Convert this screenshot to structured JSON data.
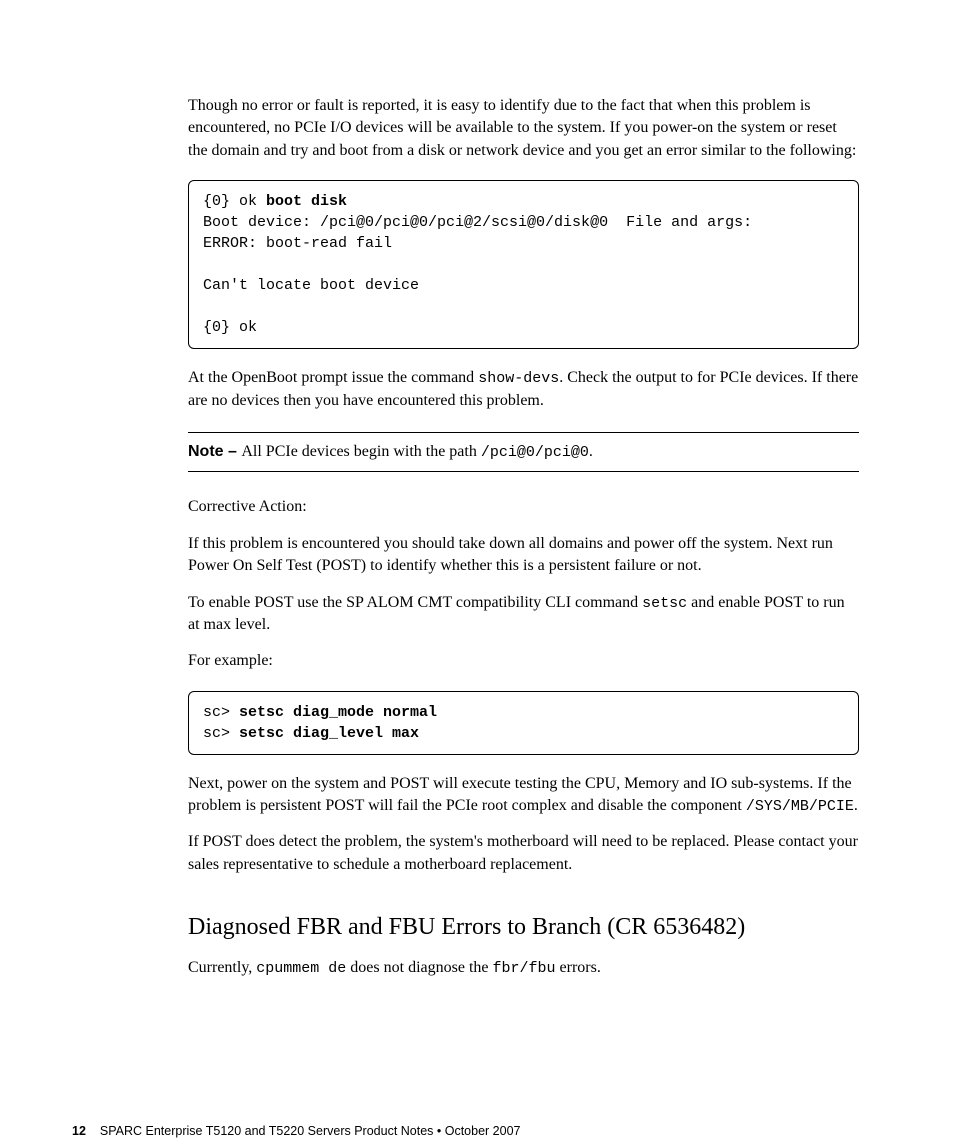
{
  "paragraphs": {
    "intro": "Though no error or fault is reported, it is easy to identify due to the fact that when this problem is encountered, no PCIe I/O devices will be available to the system. If you power-on the system or reset the domain and try and boot from a disk or network device and you get an error similar to the following:",
    "openboot1": "At the OpenBoot prompt issue the command ",
    "openboot_cmd": "show-devs",
    "openboot2": ". Check the output to for PCIe devices. If there are no devices then you have encountered this problem.",
    "corrective_label": "Corrective Action:",
    "corr1": "If this problem is encountered you should take down all domains and power off the system. Next run Power On Self Test (POST) to identify whether this is a persistent failure or not.",
    "corr2a": "To enable POST use the SP ALOM CMT compatibility CLI command ",
    "corr2_cmd": "setsc",
    "corr2b": " and enable POST to run at max level.",
    "example_label": "For example:",
    "next1a": "Next, power on the system and POST will execute testing the CPU, Memory and IO sub-systems. If the problem is persistent POST will fail the PCIe root complex and disable the component ",
    "next1_cmd": "/SYS/MB/PCIE",
    "next1b": ".",
    "next2": "If POST does detect the problem, the system's motherboard will need to be replaced. Please contact your sales representative to schedule a motherboard replacement.",
    "diag1a": "Currently, ",
    "diag1_cmd1": "cpummem de",
    "diag1b": " does not diagnose the ",
    "diag1_cmd2": "fbr/fbu",
    "diag1c": " errors."
  },
  "code1": {
    "line1a": "{0} ok ",
    "line1b": "boot disk",
    "line2": "Boot device: /pci@0/pci@0/pci@2/scsi@0/disk@0  File and args:",
    "line3": "ERROR: boot-read fail",
    "blank": "",
    "line4": "Can't locate boot device",
    "line5": "{0} ok"
  },
  "code2": {
    "line1a": "sc> ",
    "line1b": "setsc diag_mode normal",
    "line2a": "sc> ",
    "line2b": "setsc diag_level max"
  },
  "note": {
    "label": "Note – ",
    "text1": "All PCIe devices begin with the path ",
    "path": "/pci@0/pci@0",
    "text2": "."
  },
  "heading": "Diagnosed FBR and FBU Errors to Branch (CR 6536482)",
  "footer": {
    "page": "12",
    "text": "SPARC Enterprise T5120 and T5220 Servers Product Notes • October 2007"
  }
}
